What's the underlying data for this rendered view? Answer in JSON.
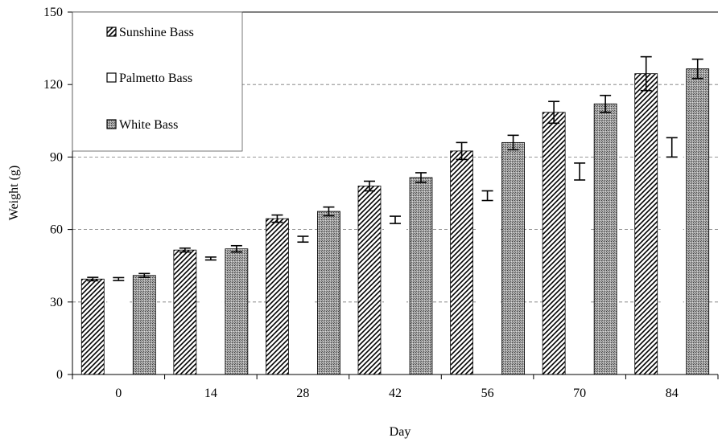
{
  "chart_data": {
    "type": "bar",
    "title": "",
    "xlabel": "Day",
    "ylabel": "Weight (g)",
    "categories": [
      "0",
      "14",
      "28",
      "42",
      "56",
      "70",
      "84"
    ],
    "ylim": [
      0,
      150
    ],
    "yticks": [
      0,
      30,
      60,
      90,
      120,
      150
    ],
    "grid": "dashed horizontal",
    "legend_position": "top-left",
    "series": [
      {
        "name": "Sunshine Bass",
        "pattern": "diagonal-hatch",
        "values": [
          39.5,
          51.5,
          64.5,
          78.0,
          92.5,
          108.5,
          124.5
        ],
        "errors": [
          0.7,
          0.8,
          1.5,
          2.0,
          3.5,
          4.5,
          7.0
        ]
      },
      {
        "name": "Palmetto Bass",
        "pattern": "open",
        "values": [
          39.5,
          48.0,
          56.0,
          64.0,
          74.0,
          84.0,
          94.0
        ],
        "errors": [
          0.6,
          0.6,
          1.2,
          1.5,
          2.0,
          3.5,
          4.0
        ]
      },
      {
        "name": "White Bass",
        "pattern": "stipple",
        "values": [
          41.0,
          52.0,
          67.5,
          81.5,
          96.0,
          112.0,
          126.5
        ],
        "errors": [
          0.8,
          1.3,
          1.8,
          2.0,
          3.0,
          3.5,
          4.0
        ]
      }
    ]
  }
}
